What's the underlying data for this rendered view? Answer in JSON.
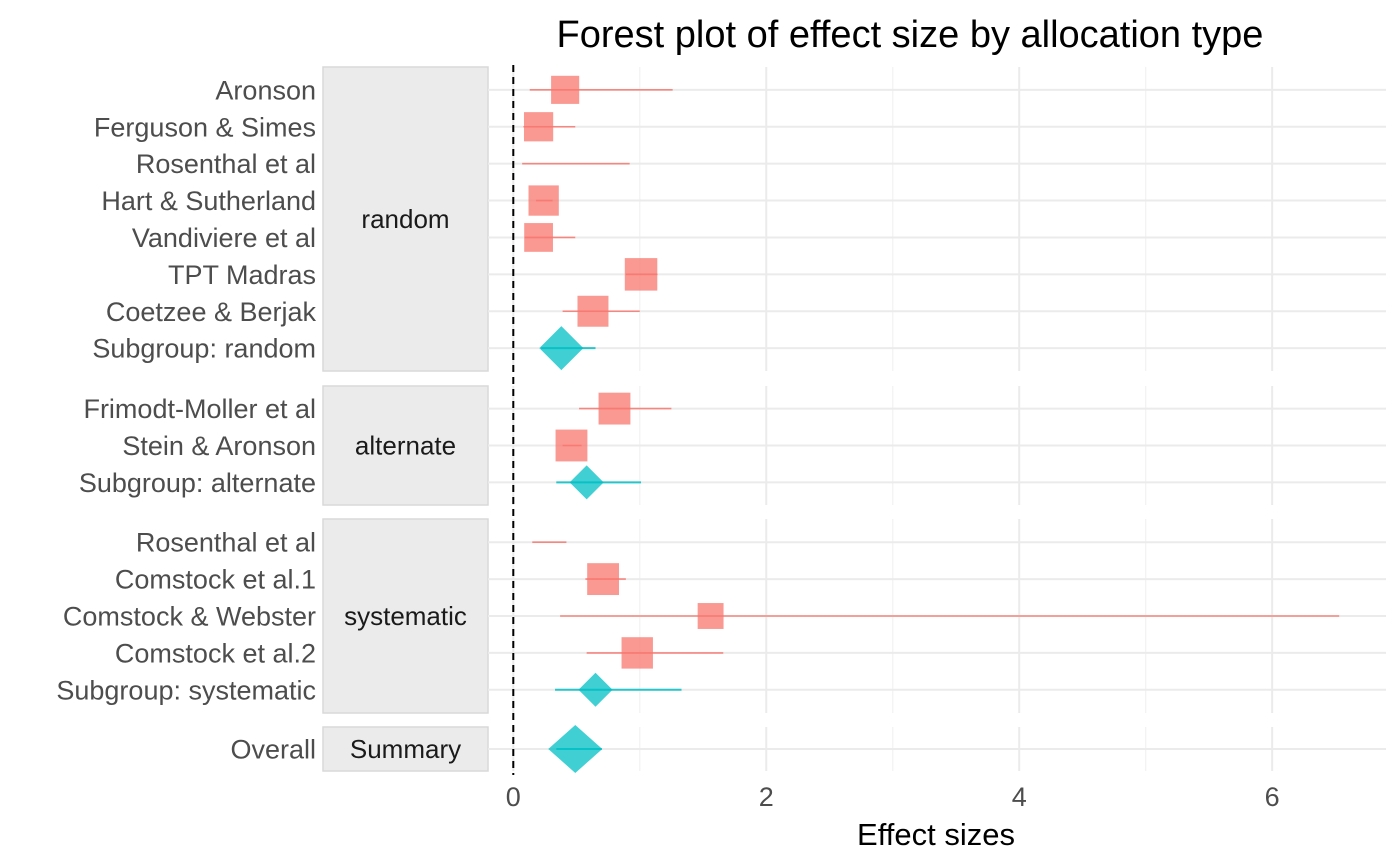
{
  "chart_data": {
    "type": "forest",
    "title": "Forest plot of effect size by allocation type",
    "xlabel": "Effect sizes",
    "xlim": [
      -0.2,
      6.9
    ],
    "xticks": [
      0,
      2,
      4,
      6
    ],
    "xtick_labels": [
      "0",
      "2",
      "4",
      "6"
    ],
    "reference_line_x": 0,
    "colors": {
      "study": "#F8766D",
      "summary": "#00BFC4"
    },
    "groups": [
      {
        "strip_label": "random",
        "rows": [
          {
            "label": "Aronson",
            "kind": "study",
            "estimate": 0.41,
            "lower": 0.13,
            "upper": 1.26,
            "weight": 0.55
          },
          {
            "label": "Ferguson & Simes",
            "kind": "study",
            "estimate": 0.2,
            "lower": 0.08,
            "upper": 0.49,
            "weight": 0.6
          },
          {
            "label": "Rosenthal et al",
            "kind": "study",
            "estimate": 0.26,
            "lower": 0.07,
            "upper": 0.92,
            "weight": 0.0
          },
          {
            "label": "Hart & Sutherland",
            "kind": "study",
            "estimate": 0.24,
            "lower": 0.18,
            "upper": 0.31,
            "weight": 0.65
          },
          {
            "label": "Vandiviere et al",
            "kind": "study",
            "estimate": 0.2,
            "lower": 0.09,
            "upper": 0.49,
            "weight": 0.58
          },
          {
            "label": "TPT Madras",
            "kind": "study",
            "estimate": 1.01,
            "lower": 0.89,
            "upper": 1.14,
            "weight": 0.75
          },
          {
            "label": "Coetzee & Berjak",
            "kind": "study",
            "estimate": 0.63,
            "lower": 0.39,
            "upper": 1.0,
            "weight": 0.68
          },
          {
            "label": "Subgroup: random",
            "kind": "summary",
            "estimate": 0.38,
            "lower": 0.22,
            "upper": 0.65
          }
        ]
      },
      {
        "strip_label": "alternate",
        "rows": [
          {
            "label": "Frimodt-Moller et al",
            "kind": "study",
            "estimate": 0.8,
            "lower": 0.52,
            "upper": 1.25,
            "weight": 0.72
          },
          {
            "label": "Stein & Aronson",
            "kind": "study",
            "estimate": 0.46,
            "lower": 0.39,
            "upper": 0.54,
            "weight": 0.72
          },
          {
            "label": "Subgroup: alternate",
            "kind": "summary",
            "estimate": 0.58,
            "lower": 0.34,
            "upper": 1.01
          }
        ]
      },
      {
        "strip_label": "systematic",
        "rows": [
          {
            "label": "Rosenthal et al",
            "kind": "study",
            "estimate": 0.2,
            "lower": 0.15,
            "upper": 0.42,
            "weight": 0.0
          },
          {
            "label": "Comstock et al.1",
            "kind": "study",
            "estimate": 0.71,
            "lower": 0.57,
            "upper": 0.89,
            "weight": 0.72
          },
          {
            "label": "Comstock & Webster",
            "kind": "study",
            "estimate": 1.56,
            "lower": 0.37,
            "upper": 6.53,
            "weight": 0.45
          },
          {
            "label": "Comstock et al.2",
            "kind": "study",
            "estimate": 0.98,
            "lower": 0.58,
            "upper": 1.66,
            "weight": 0.7
          },
          {
            "label": "Subgroup: systematic",
            "kind": "summary",
            "estimate": 0.65,
            "lower": 0.33,
            "upper": 1.33
          }
        ]
      },
      {
        "strip_label": "Summary",
        "rows": [
          {
            "label": "Overall",
            "kind": "summary",
            "estimate": 0.49,
            "lower": 0.34,
            "upper": 0.7
          }
        ]
      }
    ]
  }
}
